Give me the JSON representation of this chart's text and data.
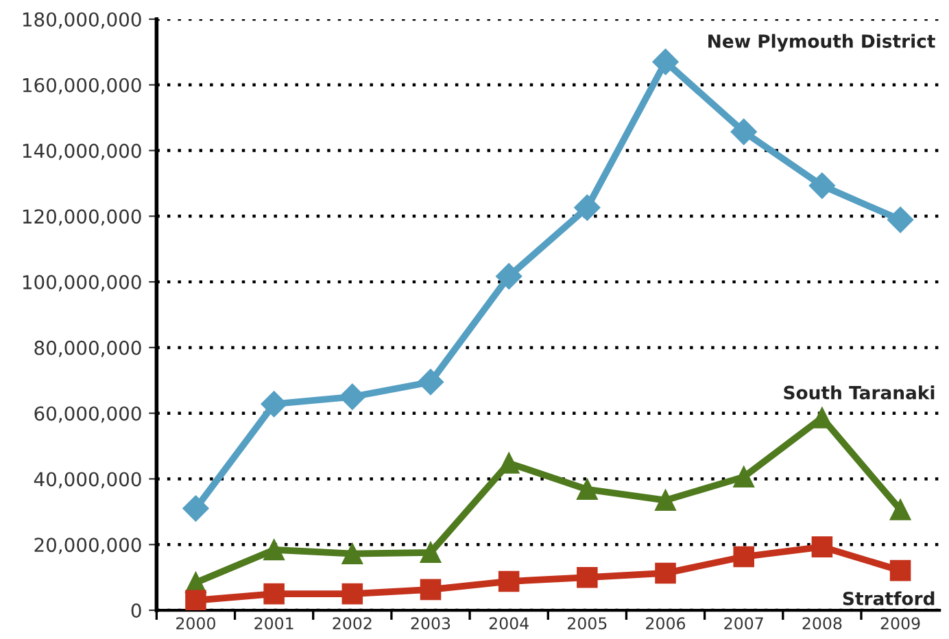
{
  "chart_data": {
    "type": "line",
    "categories": [
      "2000",
      "2001",
      "2002",
      "2003",
      "2004",
      "2005",
      "2006",
      "2007",
      "2008",
      "2009"
    ],
    "series": [
      {
        "name": "New Plymouth District",
        "color": "#559fc3",
        "marker": "diamond",
        "values": [
          31000000,
          62800000,
          65000000,
          69500000,
          101700000,
          122600000,
          167000000,
          145700000,
          129300000,
          118900000
        ]
      },
      {
        "name": "South Taranaki",
        "color": "#4f7a1e",
        "marker": "triangle",
        "values": [
          8400000,
          18400000,
          17200000,
          17600000,
          44800000,
          36800000,
          33500000,
          40600000,
          58600000,
          30600000
        ]
      },
      {
        "name": "Stratford",
        "color": "#c4321c",
        "marker": "square",
        "values": [
          3000000,
          5000000,
          5000000,
          6300000,
          8800000,
          10000000,
          11300000,
          16300000,
          19300000,
          12100000
        ]
      }
    ],
    "ylim": [
      0,
      180000000
    ],
    "yticks": [
      0,
      {
        "value": 20000000,
        "label": "20,000,000"
      },
      {
        "value": 40000000,
        "label": "40,000,000"
      },
      {
        "value": 60000000,
        "label": "60,000,000"
      },
      {
        "value": 80000000,
        "label": "80,000,000"
      },
      {
        "value": 100000000,
        "label": "100,000,000"
      },
      {
        "value": 120000000,
        "label": "120,000,000"
      },
      {
        "value": 140000000,
        "label": "140,000,000"
      },
      {
        "value": 160000000,
        "label": "160,000,000"
      },
      {
        "value": 180000000,
        "label": "180,000,000"
      }
    ],
    "grid": "y",
    "line_style": "solid",
    "legend": false
  }
}
